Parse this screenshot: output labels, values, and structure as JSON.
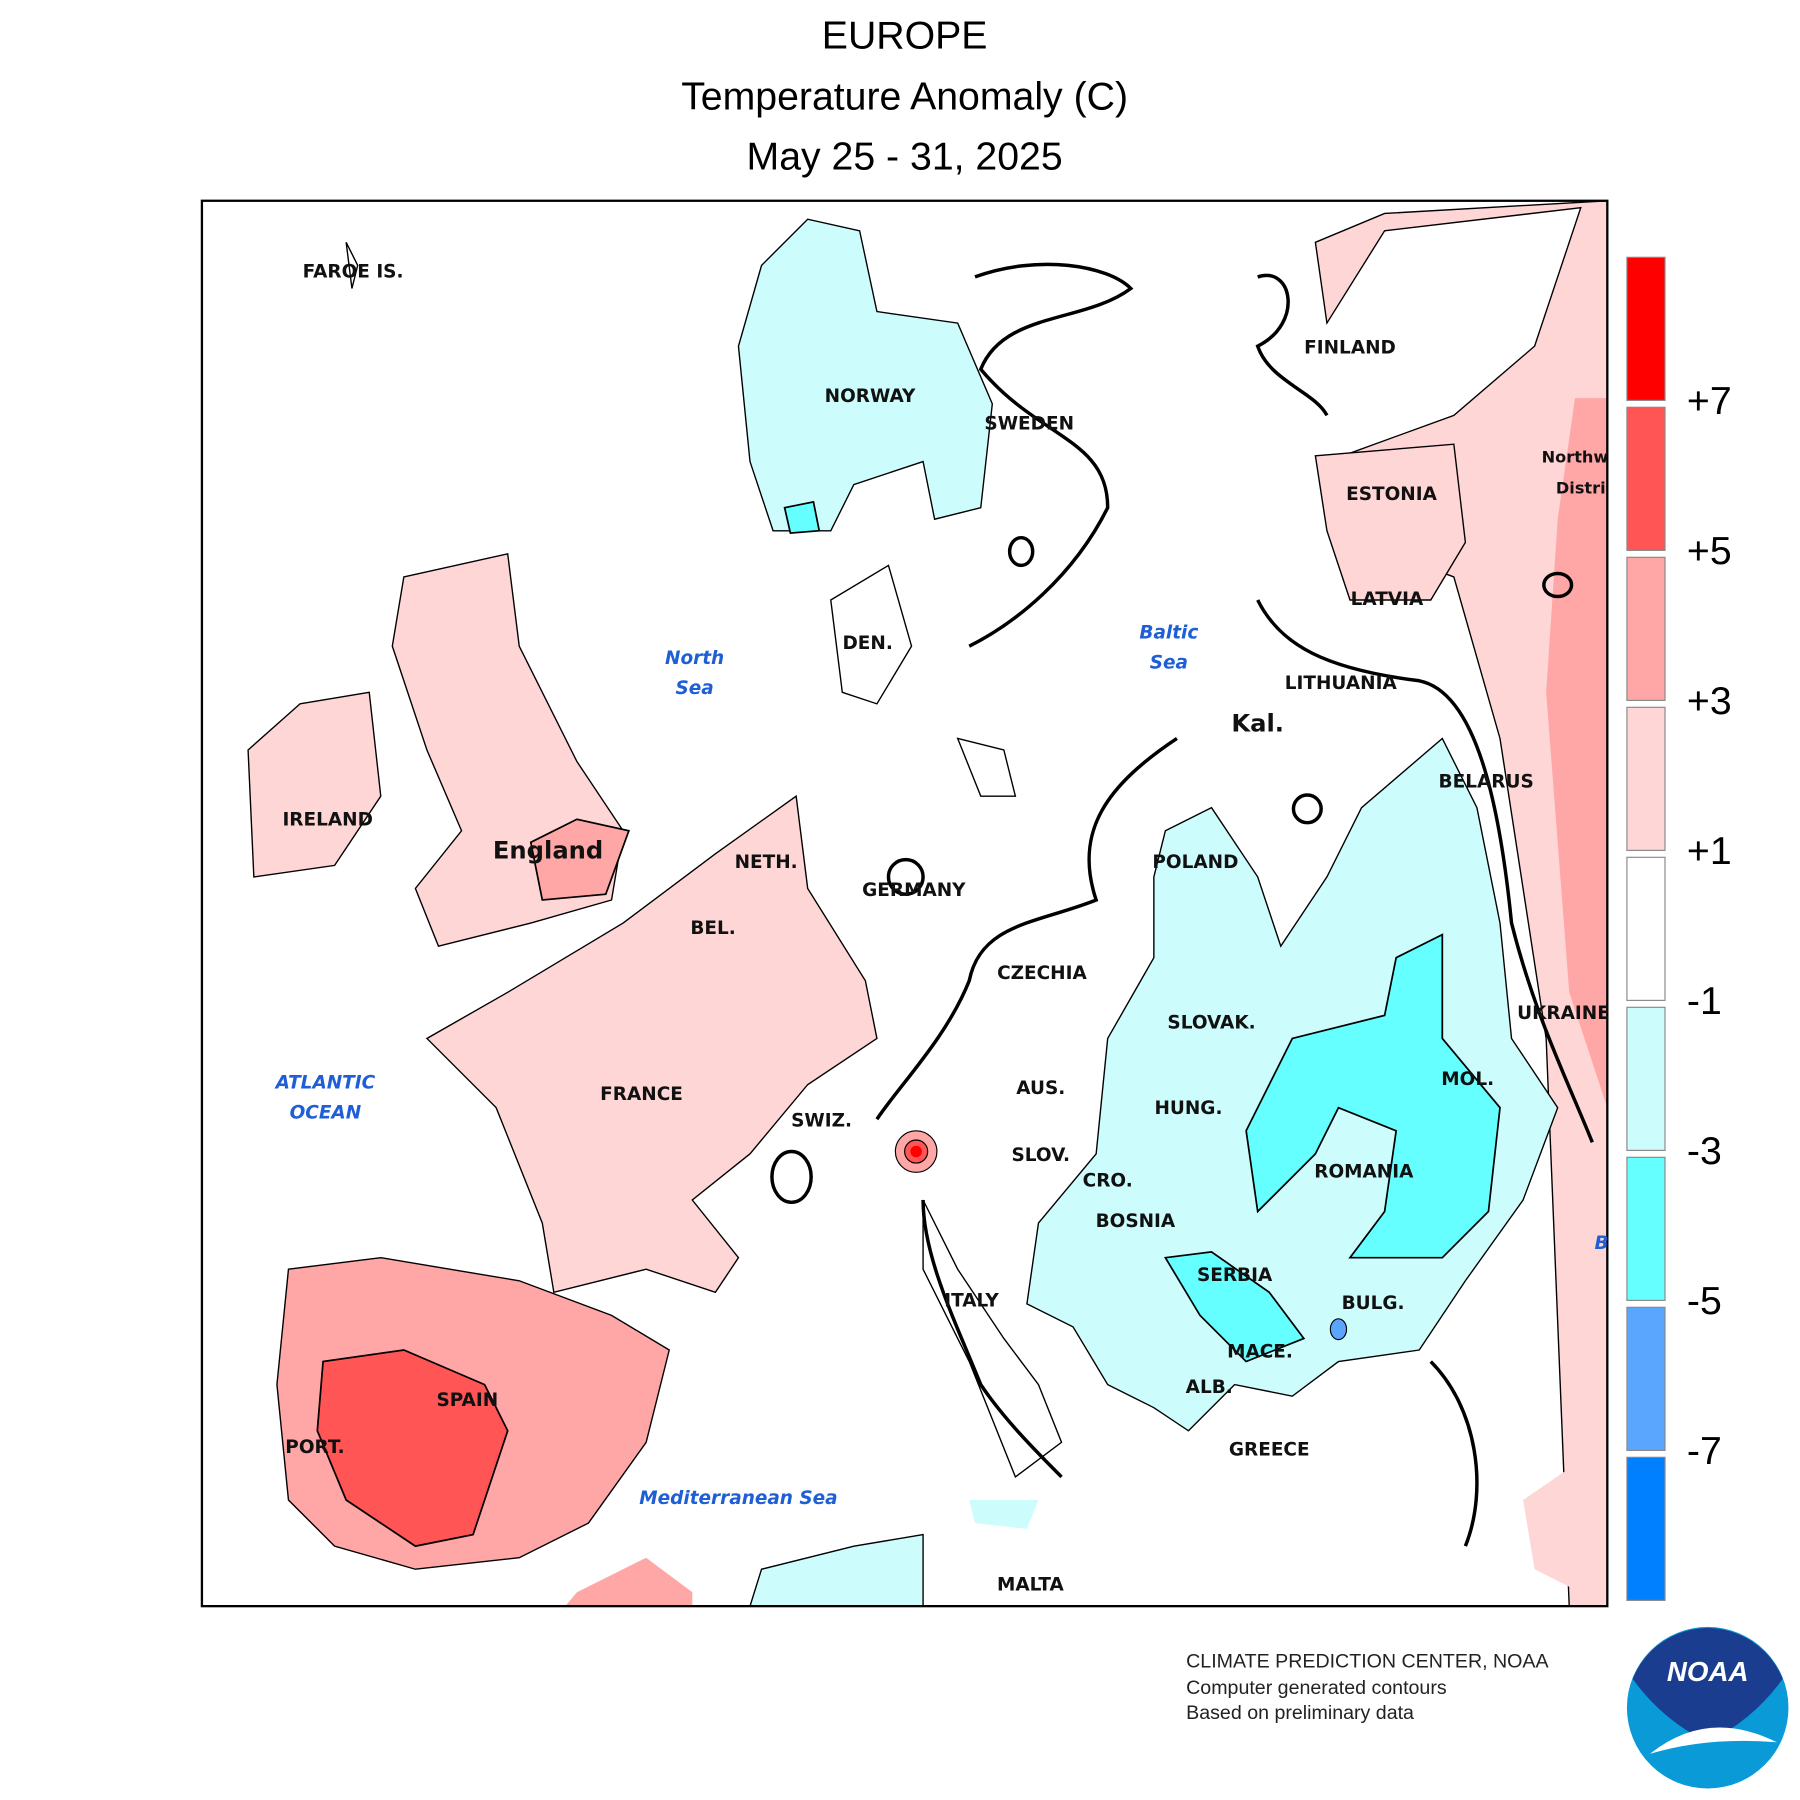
{
  "title": {
    "region": "EUROPE",
    "variable": "Temperature Anomaly (C)",
    "period": "May 25 - 31, 2025"
  },
  "map_labels": [
    "FAROE IS.",
    "NORWAY",
    "SWEDEN",
    "FINLAND",
    "ESTONIA",
    "LATVIA",
    "LITHUANIA",
    "Kal.",
    "BELARUS",
    "Northw",
    "Distri",
    "UKRAINE",
    "POLAND",
    "GERMANY",
    "NETH.",
    "BEL.",
    "DEN.",
    "CZECHIA",
    "SLOVAK.",
    "AUS.",
    "HUNG.",
    "MOL.",
    "ROMANIA",
    "SWIZ.",
    "SLOV.",
    "CRO.",
    "BOSNIA",
    "SERBIA",
    "BULG.",
    "MACE.",
    "ALB.",
    "GREECE",
    "ITALY",
    "MALTA",
    "FRANCE",
    "SPAIN",
    "PORT.",
    "IRELAND",
    "England"
  ],
  "sea_labels": [
    "North",
    "Sea",
    "Baltic",
    "Sea",
    "ATLANTIC",
    "OCEAN",
    "Mediterranean Sea",
    "B"
  ],
  "legend": {
    "labels": [
      "+7",
      "+5",
      "+3",
      "+1",
      "-1",
      "-3",
      "-5",
      "-7"
    ],
    "colors": [
      "#ff0000",
      "#ff5555",
      "#ffa6a6",
      "#ffd6d6",
      "#ffffff",
      "#ccfcfc",
      "#66ffff",
      "#5aa6ff",
      "#0080ff"
    ]
  },
  "credit": [
    "CLIMATE PREDICTION CENTER, NOAA",
    "Computer generated contours",
    "Based on preliminary data"
  ],
  "logo": "NOAA"
}
